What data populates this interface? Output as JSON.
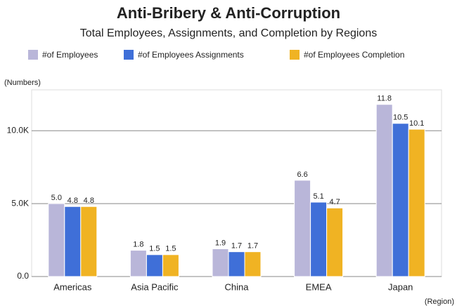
{
  "chart_data": {
    "type": "bar",
    "title": "Anti-Bribery & Anti-Corruption",
    "subtitle": "Total Employees, Assignments, and Completion by Regions",
    "y_label": "(Numbers)",
    "x_label": "(Region)",
    "categories": [
      "Americas",
      "Asia Pacific",
      "China",
      "EMEA",
      "Japan"
    ],
    "series": [
      {
        "name": "#of Employees",
        "color": "#b9b6d9",
        "values": [
          5000,
          1800,
          1900,
          6600,
          11800
        ],
        "value_labels": [
          "5.0",
          "1.8",
          "1.9",
          "6.6",
          "11.8"
        ]
      },
      {
        "name": "#of Employees Assignments",
        "color": "#3f6fd8",
        "values": [
          4800,
          1500,
          1700,
          5100,
          10500
        ],
        "value_labels": [
          "4.8",
          "1.5",
          "1.7",
          "5.1",
          "10.5"
        ]
      },
      {
        "name": "#of Employees Completion",
        "color": "#f0b323",
        "values": [
          4800,
          1500,
          1700,
          4700,
          10100
        ],
        "value_labels": [
          "4.8",
          "1.5",
          "1.7",
          "4.7",
          "10.1"
        ]
      }
    ],
    "ylim": [
      0,
      12800
    ],
    "yticks": [
      {
        "value": 0,
        "label": "0.0"
      },
      {
        "value": 5000,
        "label": "5.0K"
      },
      {
        "value": 10000,
        "label": "10.0K"
      }
    ],
    "grid": true,
    "legend": "top"
  }
}
